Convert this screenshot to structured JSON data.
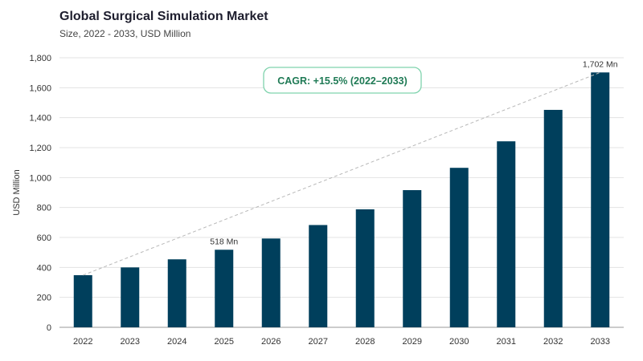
{
  "header": {
    "title": "Global Surgical Simulation Market",
    "subtitle": "Size, 2022 - 2033, USD Million"
  },
  "chart_data": {
    "type": "bar",
    "categories": [
      "2022",
      "2023",
      "2024",
      "2025",
      "2026",
      "2027",
      "2028",
      "2029",
      "2030",
      "2031",
      "2032",
      "2033"
    ],
    "values": [
      348,
      400,
      454,
      518,
      593,
      683,
      788,
      916,
      1065,
      1242,
      1452,
      1702
    ],
    "ylabel": "USD Million",
    "ylim": [
      0,
      1800
    ],
    "yticks": [
      0,
      200,
      400,
      600,
      800,
      1000,
      1200,
      1400,
      1600,
      1800
    ],
    "ytick_labels": [
      "0",
      "200",
      "400",
      "600",
      "800",
      "1,000",
      "1,200",
      "1,400",
      "1,600",
      "1,800"
    ],
    "grid": true,
    "bar_color": "#003f5c",
    "annotations": [
      {
        "category": "2025",
        "text": "518 Mn"
      },
      {
        "category": "2033",
        "text": "1,702 Mn"
      }
    ],
    "cagr_label": "CAGR: +15.5% (2022–2033)",
    "trend_line": {
      "from": "2022",
      "to": "2033",
      "style": "dashed"
    }
  }
}
